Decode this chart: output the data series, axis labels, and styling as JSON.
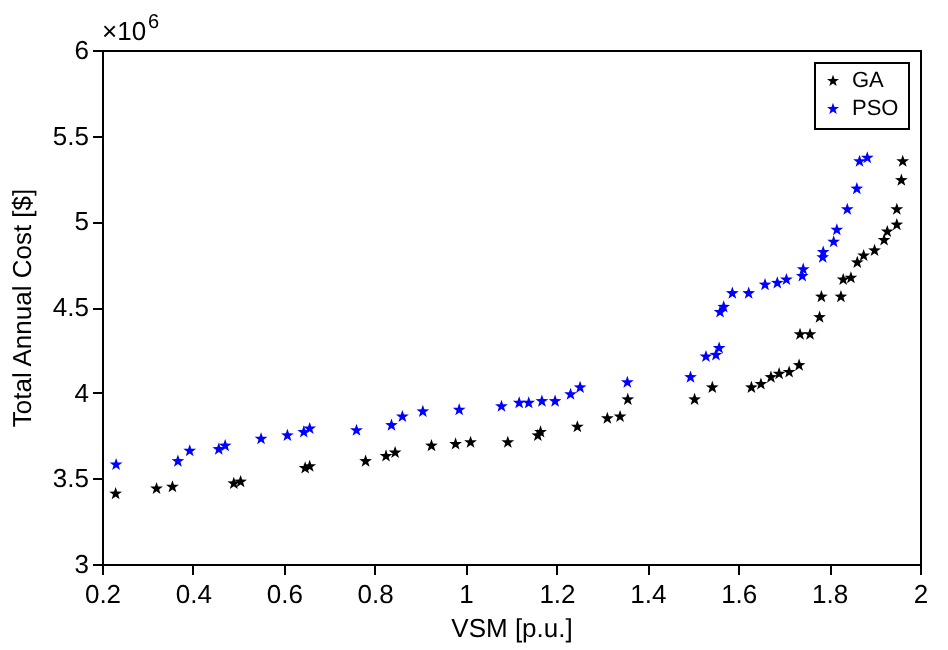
{
  "chart_data": {
    "type": "scatter",
    "xlabel": "VSM [p.u.]",
    "ylabel": "Total Annual Cost [$]",
    "annotations": [
      "×10$^{6}$"
    ],
    "xlim": [
      0.2,
      2
    ],
    "xticks": [
      0.2,
      0.4,
      0.6,
      0.8,
      1,
      1.2,
      1.4,
      1.6,
      1.8,
      2
    ],
    "ylim": [
      3,
      6
    ],
    "yticks": [
      3,
      3.5,
      4,
      4.5,
      5,
      5.5,
      6
    ],
    "marker": "star",
    "legend": "top right",
    "series": [
      {
        "name": "GA",
        "color": "#000000",
        "x": [
          0.23,
          0.32,
          0.355,
          0.49,
          0.505,
          0.647,
          0.657,
          0.78,
          0.825,
          0.845,
          0.925,
          0.978,
          1.011,
          1.093,
          1.159,
          1.165,
          1.246,
          1.312,
          1.34,
          1.357,
          1.504,
          1.543,
          1.629,
          1.65,
          1.672,
          1.69,
          1.712,
          1.734,
          1.736,
          1.758,
          1.779,
          1.783,
          1.826,
          1.831,
          1.848,
          1.862,
          1.876,
          1.9,
          1.921,
          1.928,
          1.949,
          1.949,
          1.959,
          1.962
        ],
        "values": [
          3.41,
          3.44,
          3.45,
          3.47,
          3.48,
          3.56,
          3.57,
          3.6,
          3.63,
          3.65,
          3.69,
          3.7,
          3.71,
          3.71,
          3.75,
          3.77,
          3.8,
          3.85,
          3.86,
          3.96,
          3.96,
          4.03,
          4.03,
          4.05,
          4.09,
          4.11,
          4.12,
          4.16,
          4.34,
          4.34,
          4.44,
          4.56,
          4.56,
          4.66,
          4.67,
          4.76,
          4.8,
          4.83,
          4.89,
          4.94,
          4.98,
          5.07,
          5.24,
          5.35
        ]
      },
      {
        "name": "PSO",
        "color": "#0000ff",
        "x": [
          0.231,
          0.367,
          0.393,
          0.457,
          0.471,
          0.55,
          0.608,
          0.644,
          0.657,
          0.76,
          0.837,
          0.861,
          0.906,
          0.986,
          1.079,
          1.118,
          1.139,
          1.168,
          1.197,
          1.231,
          1.252,
          1.356,
          1.495,
          1.529,
          1.551,
          1.558,
          1.56,
          1.568,
          1.587,
          1.623,
          1.659,
          1.686,
          1.706,
          1.741,
          1.743,
          1.786,
          1.787,
          1.81,
          1.817,
          1.84,
          1.861,
          1.867,
          1.884
        ],
        "values": [
          3.58,
          3.6,
          3.66,
          3.67,
          3.69,
          3.73,
          3.75,
          3.77,
          3.79,
          3.78,
          3.81,
          3.86,
          3.89,
          3.9,
          3.92,
          3.94,
          3.94,
          3.95,
          3.95,
          3.99,
          4.03,
          4.06,
          4.09,
          4.21,
          4.22,
          4.26,
          4.47,
          4.5,
          4.58,
          4.58,
          4.63,
          4.64,
          4.66,
          4.68,
          4.72,
          4.79,
          4.82,
          4.88,
          4.95,
          5.07,
          5.19,
          5.35,
          5.37
        ]
      }
    ]
  }
}
